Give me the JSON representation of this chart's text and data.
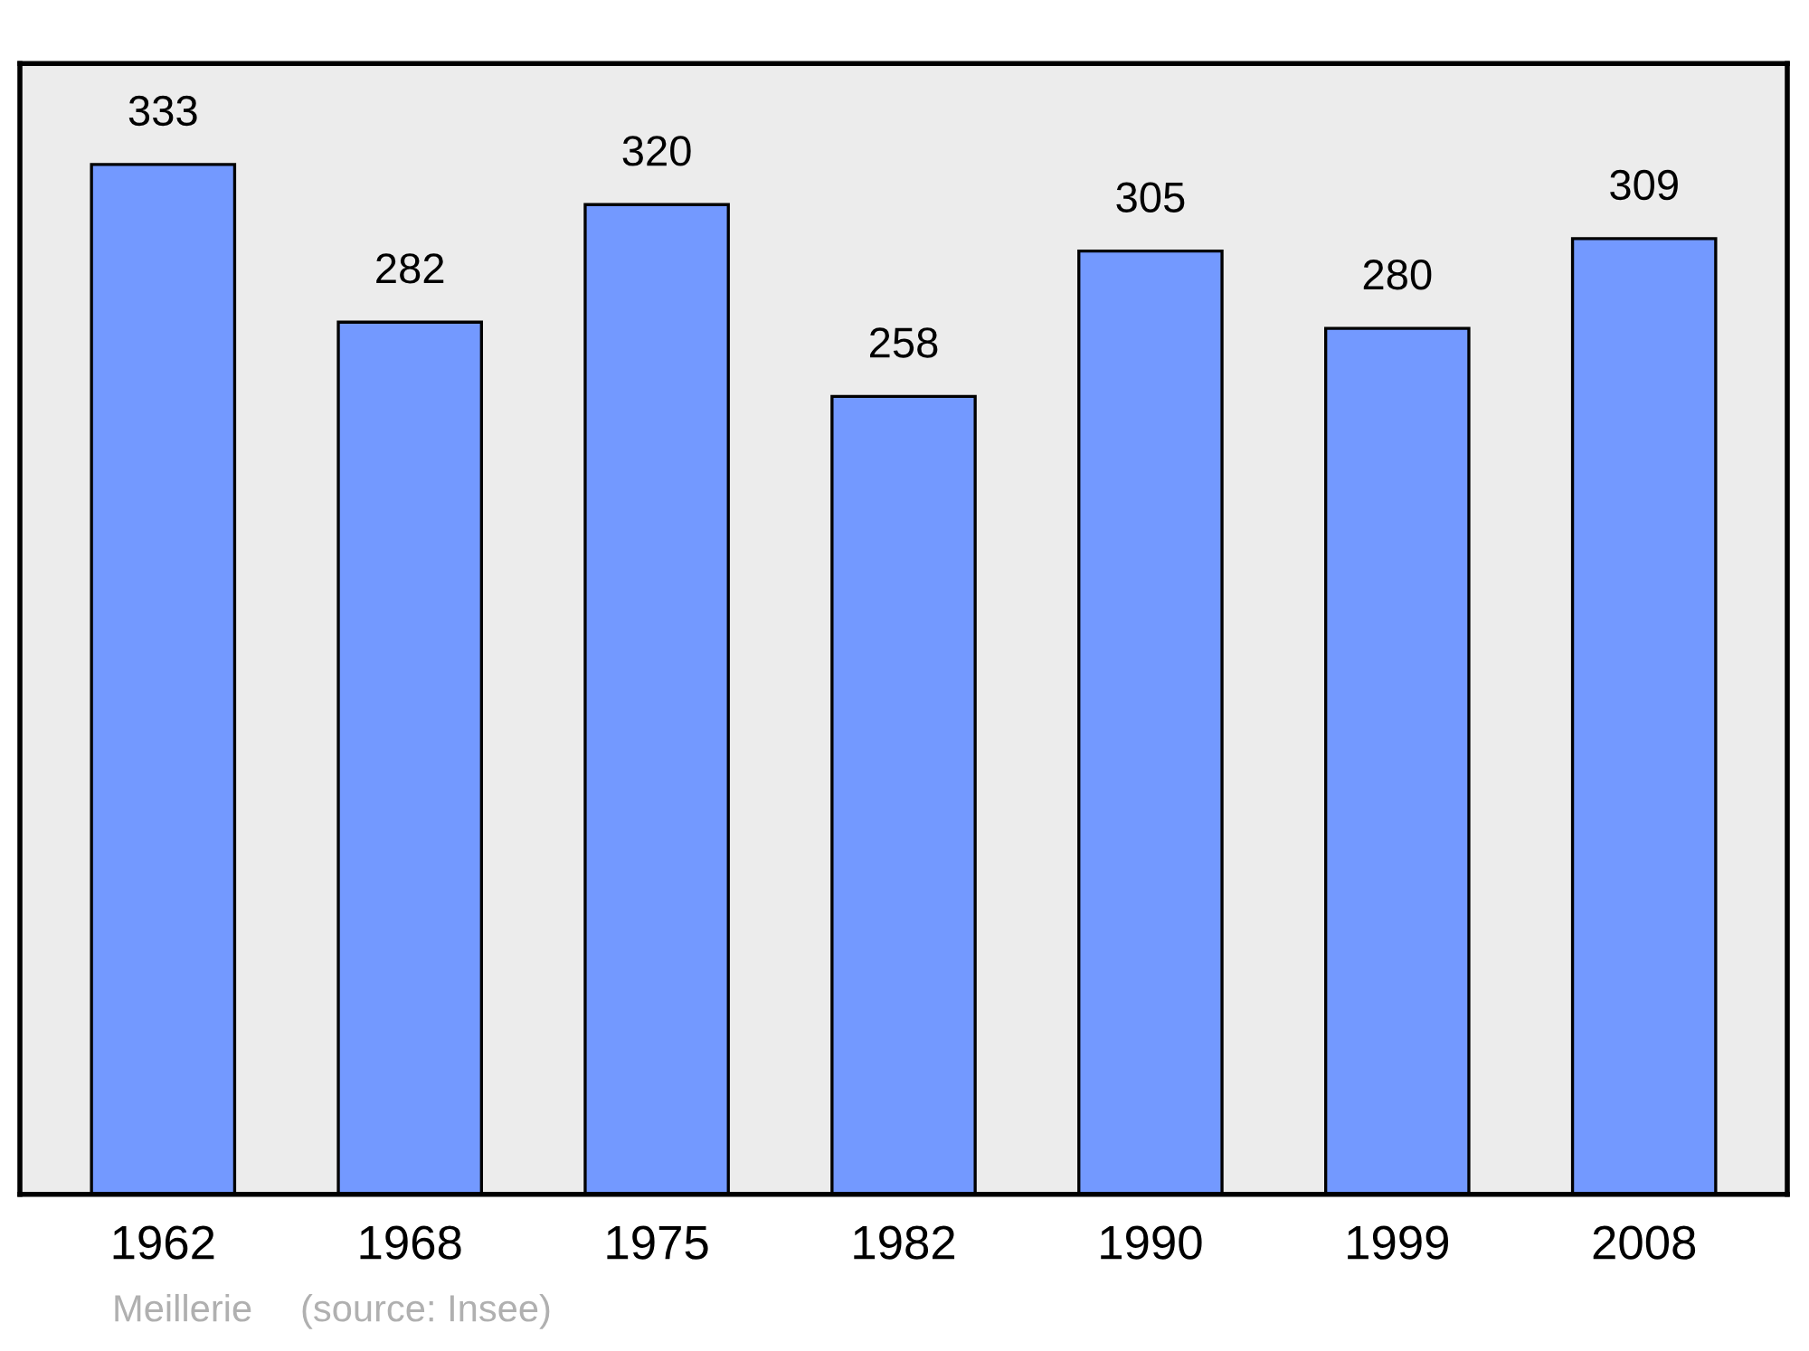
{
  "chart_data": {
    "type": "bar",
    "categories": [
      "1962",
      "1968",
      "1975",
      "1982",
      "1990",
      "1999",
      "2008"
    ],
    "values": [
      333,
      282,
      320,
      258,
      305,
      280,
      309
    ],
    "color": "#7399ff",
    "data_labels": true,
    "annotations": [
      "Meillerie",
      "(source: Insee)"
    ]
  }
}
